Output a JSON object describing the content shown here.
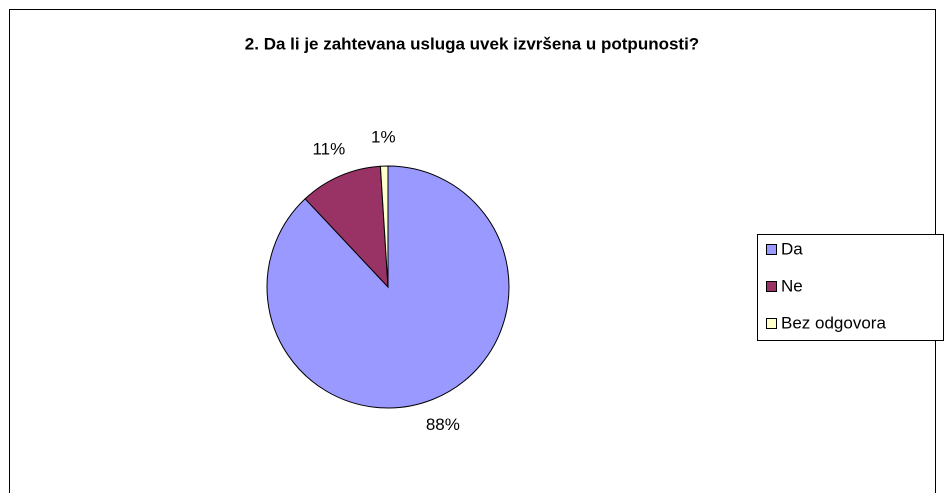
{
  "chart_data": {
    "type": "pie",
    "title": "2. Da li je zahtevana usluga uvek izvršena u potpunosti?",
    "categories": [
      "Da",
      "Ne",
      "Bez odgovora"
    ],
    "values": [
      88,
      11,
      1
    ],
    "value_labels": [
      "88%",
      "11%",
      "1%"
    ],
    "colors": [
      "#9999ff",
      "#993366",
      "#ffffcc"
    ],
    "legend": "right"
  }
}
